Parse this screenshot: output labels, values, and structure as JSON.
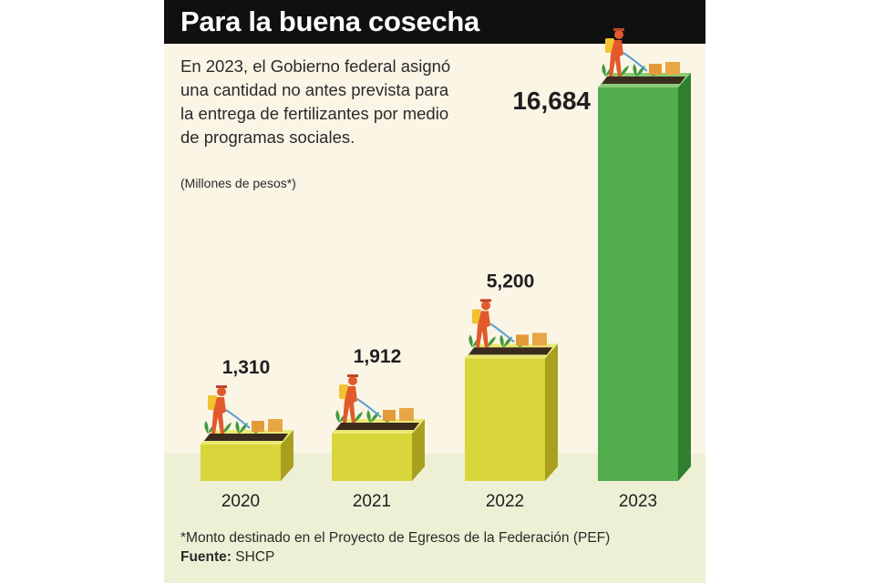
{
  "header": {
    "title": "Para la buena cosecha"
  },
  "intro": {
    "text": "En 2023, el Gobierno federal asignó una cantidad no antes prevista para la entrega de fertilizantes por medio de programas sociales.",
    "units": "(Millones de pesos*)"
  },
  "chart_data": {
    "type": "bar",
    "categories": [
      "2020",
      "2021",
      "2022",
      "2023"
    ],
    "values": [
      1310,
      1912,
      5200,
      16684
    ],
    "value_labels": [
      "1,310",
      "1,912",
      "5,200",
      "16,684"
    ],
    "title": "Para la buena cosecha",
    "ylabel": "Millones de pesos",
    "ylim": [
      0,
      16684
    ],
    "grid": false,
    "colors": {
      "yellow": {
        "front": "#d8d63a",
        "side": "#a8a01e",
        "top": "#ebe976"
      },
      "green": {
        "front": "#52ad4e",
        "side": "#2f7f2f",
        "top": "#8ccb76"
      }
    }
  },
  "footer": {
    "footnote": "*Monto destinado en el Proyecto de Egresos de la Federación (PEF)",
    "source_label": "Fuente:",
    "source_value": "SHCP"
  },
  "colors": {
    "panel_bg": "#fbf5e6",
    "floor_bg": "#eef0d6",
    "title_bar": "#101010"
  }
}
